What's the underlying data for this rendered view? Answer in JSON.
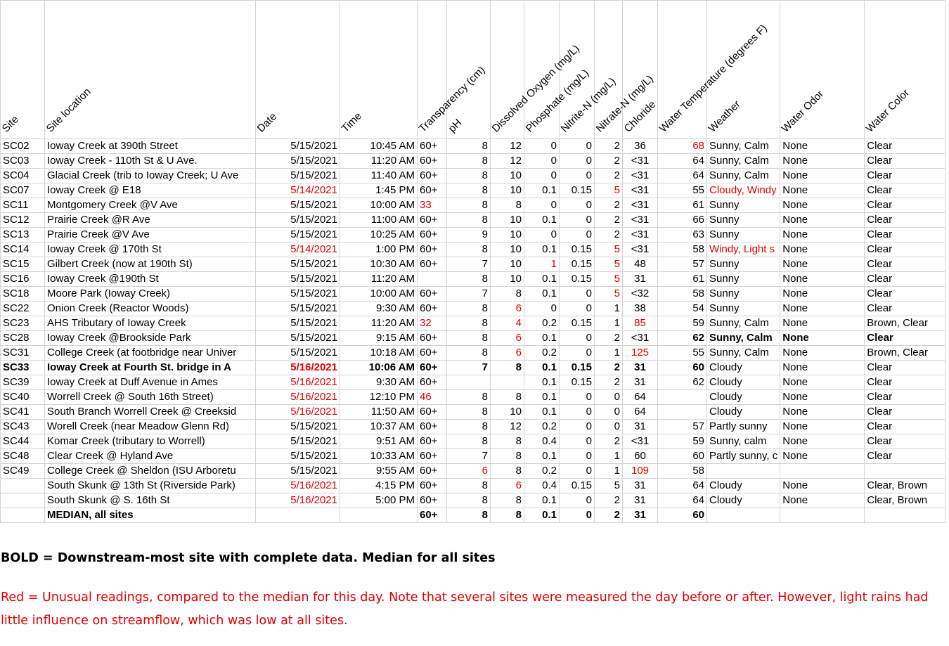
{
  "headers": {
    "site": "Site",
    "location": "Site location",
    "date": "Date",
    "time": "Time",
    "transparency": "Transparency (cm)",
    "ph": "pH",
    "do": "Dissolved Oxygen (mg/L)",
    "phosphate": "Phosphate (mg/L)",
    "nitrite": "Nitrite-N (mg/L)",
    "nitrate": "Nitrate-N (mg/L)",
    "chloride": "Chloride",
    "temp": "Water Temperature (degrees F)",
    "weather": "Weather",
    "odor": "Water Odor",
    "color": "Water Color"
  },
  "rows": [
    {
      "site": "SC02",
      "location": "Ioway Creek at 390th Street",
      "date": "5/15/2021",
      "time": "10:45 AM",
      "transparency": "60+",
      "ph": "8",
      "do": "12",
      "phosphate": "0",
      "nitrite": "0",
      "nitrate": "2",
      "chloride": "36",
      "temp": "68",
      "weather": "Sunny, Calm",
      "odor": "None",
      "color": "Clear",
      "red": [
        "temp"
      ]
    },
    {
      "site": "SC03",
      "location": "Ioway Creek - 110th St & U Ave.",
      "date": "5/15/2021",
      "time": "11:20 AM",
      "transparency": "60+",
      "ph": "8",
      "do": "12",
      "phosphate": "0",
      "nitrite": "0",
      "nitrate": "2",
      "chloride": "<31",
      "temp": "64",
      "weather": "Sunny, Calm",
      "odor": "None",
      "color": "Clear",
      "red": []
    },
    {
      "site": "SC04",
      "location": "Glacial Creek (trib to Ioway Creek; U Ave",
      "date": "5/15/2021",
      "time": "11:40 AM",
      "transparency": "60+",
      "ph": "8",
      "do": "10",
      "phosphate": "0",
      "nitrite": "0",
      "nitrate": "2",
      "chloride": "<31",
      "temp": "64",
      "weather": "Sunny, Calm",
      "odor": "None",
      "color": "Clear",
      "red": []
    },
    {
      "site": "SC07",
      "location": "Ioway Creek @ E18",
      "date": "5/14/2021",
      "time": "1:45 PM",
      "transparency": "60+",
      "ph": "8",
      "do": "10",
      "phosphate": "0.1",
      "nitrite": "0.15",
      "nitrate": "5",
      "chloride": "<31",
      "temp": "55",
      "weather": "Cloudy, Windy",
      "odor": "None",
      "color": "Clear",
      "red": [
        "date",
        "nitrate",
        "weather"
      ]
    },
    {
      "site": "SC11",
      "location": "Montgomery Creek @V Ave",
      "date": "5/15/2021",
      "time": "10:00 AM",
      "transparency": "33",
      "ph": "8",
      "do": "8",
      "phosphate": "0",
      "nitrite": "0",
      "nitrate": "2",
      "chloride": "<31",
      "temp": "61",
      "weather": "Sunny",
      "odor": "None",
      "color": "Clear",
      "red": [
        "transparency"
      ]
    },
    {
      "site": "SC12",
      "location": "Prairie Creek @R Ave",
      "date": "5/15/2021",
      "time": "11:00 AM",
      "transparency": "60+",
      "ph": "8",
      "do": "10",
      "phosphate": "0.1",
      "nitrite": "0",
      "nitrate": "2",
      "chloride": "<31",
      "temp": "66",
      "weather": "Sunny",
      "odor": "None",
      "color": "Clear",
      "red": []
    },
    {
      "site": "SC13",
      "location": "Prairie Creek @V Ave",
      "date": "5/15/2021",
      "time": "10:25 AM",
      "transparency": "60+",
      "ph": "9",
      "do": "10",
      "phosphate": "0",
      "nitrite": "0",
      "nitrate": "2",
      "chloride": "<31",
      "temp": "63",
      "weather": "Sunny",
      "odor": "None",
      "color": "Clear",
      "red": []
    },
    {
      "site": "SC14",
      "location": "Ioway Creek @ 170th St",
      "date": "5/14/2021",
      "time": "1:00 PM",
      "transparency": "60+",
      "ph": "8",
      "do": "10",
      "phosphate": "0.1",
      "nitrite": "0.15",
      "nitrate": "5",
      "chloride": "<31",
      "temp": "58",
      "weather": "Windy, Light s",
      "odor": "None",
      "color": "Clear",
      "red": [
        "date",
        "nitrate",
        "weather"
      ]
    },
    {
      "site": "SC15",
      "location": "Gilbert Creek (now at 190th St)",
      "date": "5/15/2021",
      "time": "10:30 AM",
      "transparency": "60+",
      "ph": "7",
      "do": "10",
      "phosphate": "1",
      "nitrite": "0.15",
      "nitrate": "5",
      "chloride": "48",
      "temp": "57",
      "weather": "Sunny",
      "odor": "None",
      "color": "Clear",
      "red": [
        "phosphate",
        "nitrate"
      ]
    },
    {
      "site": "SC16",
      "location": "Ioway Creek @190th St",
      "date": "5/15/2021",
      "time": "11:20 AM",
      "transparency": "",
      "ph": "8",
      "do": "10",
      "phosphate": "0.1",
      "nitrite": "0.15",
      "nitrate": "5",
      "chloride": "31",
      "temp": "61",
      "weather": "Sunny",
      "odor": "None",
      "color": "Clear",
      "red": [
        "nitrate"
      ]
    },
    {
      "site": "SC18",
      "location": "Moore Park (Ioway Creek)",
      "date": "5/15/2021",
      "time": "10:00 AM",
      "transparency": "60+",
      "ph": "7",
      "do": "8",
      "phosphate": "0.1",
      "nitrite": "0",
      "nitrate": "5",
      "chloride": "<32",
      "temp": "58",
      "weather": "Sunny",
      "odor": "None",
      "color": "Clear",
      "red": [
        "nitrate"
      ]
    },
    {
      "site": "SC22",
      "location": "Onion Creek (Reactor Woods)",
      "date": "5/15/2021",
      "time": "9:30 AM",
      "transparency": "60+",
      "ph": "8",
      "do": "6",
      "phosphate": "0",
      "nitrite": "0",
      "nitrate": "1",
      "chloride": "38",
      "temp": "54",
      "weather": "Sunny",
      "odor": "None",
      "color": "Clear",
      "red": [
        "do"
      ]
    },
    {
      "site": "SC23",
      "location": "AHS Tributary of Ioway Creek",
      "date": "5/15/2021",
      "time": "11:20 AM",
      "transparency": "32",
      "ph": "8",
      "do": "4",
      "phosphate": "0.2",
      "nitrite": "0.15",
      "nitrate": "1",
      "chloride": "85",
      "temp": "59",
      "weather": "Sunny, Calm",
      "odor": "None",
      "color": "Brown, Clear",
      "red": [
        "transparency",
        "do",
        "chloride"
      ]
    },
    {
      "site": "SC28",
      "location": "Ioway Creek @Brookside Park",
      "date": "5/15/2021",
      "time": "9:15 AM",
      "transparency": "60+",
      "ph": "8",
      "do": "6",
      "phosphate": "0.1",
      "nitrite": "0",
      "nitrate": "2",
      "chloride": "<31",
      "temp": "62",
      "weather": "Sunny, Calm",
      "odor": "None",
      "color": "Clear",
      "red": [
        "do"
      ],
      "boldFrom": "temp"
    },
    {
      "site": "SC31",
      "location": "College Creek (at footbridge near Univer",
      "date": "5/15/2021",
      "time": "10:18 AM",
      "transparency": "60+",
      "ph": "8",
      "do": "6",
      "phosphate": "0.2",
      "nitrite": "0",
      "nitrate": "1",
      "chloride": "125",
      "temp": "55",
      "weather": "Sunny, Calm",
      "odor": "None",
      "color": "Brown, Clear",
      "red": [
        "do",
        "chloride"
      ]
    },
    {
      "site": "SC33",
      "location": "Ioway Creek at Fourth St. bridge in A",
      "date": "5/16/2021",
      "time": "10:06 AM",
      "transparency": "60+",
      "ph": "7",
      "do": "8",
      "phosphate": "0.1",
      "nitrite": "0.15",
      "nitrate": "2",
      "chloride": "31",
      "temp": "60",
      "weather": "Cloudy",
      "odor": "None",
      "color": "Clear",
      "red": [
        "date"
      ],
      "boldUntil": "temp"
    },
    {
      "site": "SC39",
      "location": "Ioway Creek at Duff Avenue in Ames",
      "date": "5/16/2021",
      "time": "9:30 AM",
      "transparency": "60+",
      "ph": "",
      "do": "",
      "phosphate": "0.1",
      "nitrite": "0.15",
      "nitrate": "2",
      "chloride": "31",
      "temp": "62",
      "weather": "Cloudy",
      "odor": "None",
      "color": "Clear",
      "red": [
        "date"
      ]
    },
    {
      "site": "SC40",
      "location": "Worrell Creek @ South 16th Street)",
      "date": "5/16/2021",
      "time": "12:10 PM",
      "transparency": "46",
      "ph": "8",
      "do": "8",
      "phosphate": "0.1",
      "nitrite": "0",
      "nitrate": "0",
      "chloride": "64",
      "temp": "",
      "weather": "Cloudy",
      "odor": "None",
      "color": "Clear",
      "red": [
        "date",
        "transparency"
      ]
    },
    {
      "site": "SC41",
      "location": "South Branch Worrell Creek @ Creeksid",
      "date": "5/16/2021",
      "time": "11:50 AM",
      "transparency": "60+",
      "ph": "8",
      "do": "10",
      "phosphate": "0.1",
      "nitrite": "0",
      "nitrate": "0",
      "chloride": "64",
      "temp": "",
      "weather": "Cloudy",
      "odor": "None",
      "color": "Clear",
      "red": [
        "date"
      ]
    },
    {
      "site": "SC43",
      "location": "Worell Creek (near Meadow Glenn Rd)",
      "date": "5/15/2021",
      "time": "10:37 AM",
      "transparency": "60+",
      "ph": "8",
      "do": "12",
      "phosphate": "0.2",
      "nitrite": "0",
      "nitrate": "0",
      "chloride": "31",
      "temp": "57",
      "weather": "Partly sunny",
      "odor": "None",
      "color": "Clear",
      "red": []
    },
    {
      "site": "SC44",
      "location": "Komar Creek (tributary to Worrell)",
      "date": "5/15/2021",
      "time": "9:51 AM",
      "transparency": "60+",
      "ph": "8",
      "do": "8",
      "phosphate": "0.4",
      "nitrite": "0",
      "nitrate": "2",
      "chloride": "<31",
      "temp": "59",
      "weather": "Sunny, calm",
      "odor": "None",
      "color": "Clear",
      "red": []
    },
    {
      "site": "SC48",
      "location": "Clear Creek @ Hyland Ave",
      "date": "5/15/2021",
      "time": "10:33 AM",
      "transparency": "60+",
      "ph": "7",
      "do": "8",
      "phosphate": "0.1",
      "nitrite": "0",
      "nitrate": "1",
      "chloride": "60",
      "temp": "60",
      "weather": "Partly sunny, c",
      "odor": "None",
      "color": "Clear",
      "red": []
    },
    {
      "site": "SC49",
      "location": "College Creek @ Sheldon (ISU Arboretu",
      "date": "5/15/2021",
      "time": "9:55 AM",
      "transparency": "60+",
      "ph": "6",
      "do": "8",
      "phosphate": "0.2",
      "nitrite": "0",
      "nitrate": "1",
      "chloride": "109",
      "temp": "58",
      "weather": "",
      "odor": "",
      "color": "",
      "red": [
        "ph",
        "chloride"
      ]
    },
    {
      "site": "",
      "location": "South Skunk @ 13th St (Riverside Park)",
      "date": "5/16/2021",
      "time": "4:15 PM",
      "transparency": "60+",
      "ph": "8",
      "do": "6",
      "phosphate": "0.4",
      "nitrite": "0.15",
      "nitrate": "5",
      "chloride": "31",
      "temp": "64",
      "weather": "Cloudy",
      "odor": "None",
      "color": "Clear, Brown",
      "red": [
        "date",
        "do"
      ]
    },
    {
      "site": "",
      "location": "South Skunk @ S. 16th St",
      "date": "5/16/2021",
      "time": "5:00 PM",
      "transparency": "60+",
      "ph": "8",
      "do": "8",
      "phosphate": "0.1",
      "nitrite": "0",
      "nitrate": "2",
      "chloride": "31",
      "temp": "64",
      "weather": "Cloudy",
      "odor": "None",
      "color": "Clear, Brown",
      "red": [
        "date"
      ]
    },
    {
      "site": "",
      "location": "MEDIAN, all sites",
      "date": "",
      "time": "",
      "transparency": "60+",
      "ph": "8",
      "do": "8",
      "phosphate": "0.1",
      "nitrite": "0",
      "nitrate": "2",
      "chloride": "31",
      "temp": "60",
      "weather": "",
      "odor": "",
      "color": "",
      "red": [],
      "bold": true
    }
  ],
  "notes": {
    "bold": "BOLD = Downstream-most site with complete data.  Median for all sites",
    "red": "Red = Unusual readings, compared to the median for this day.  Note that several sites were measured the day before or after.  However, light rains had little influence on streamflow, which was low at all sites."
  },
  "colors": {
    "unusual": "#e00000",
    "gridline": "#d4d4d4"
  }
}
